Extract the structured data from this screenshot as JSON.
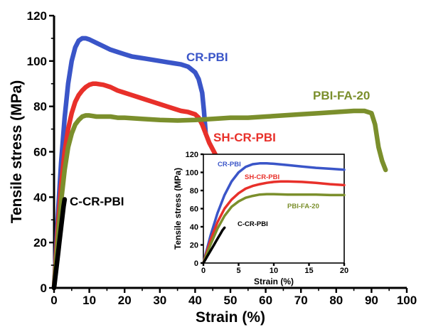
{
  "chart_data": [
    {
      "type": "line",
      "xlabel": "Strain (%)",
      "ylabel": "Tensile stress (MPa)",
      "xlim": [
        0,
        100
      ],
      "ylim": [
        0,
        120
      ],
      "xticks": [
        "0",
        "10",
        "20",
        "30",
        "40",
        "50",
        "60",
        "70",
        "80",
        "90",
        "100"
      ],
      "yticks": [
        "0",
        "20",
        "40",
        "60",
        "80",
        "100",
        "120"
      ],
      "series": [
        {
          "name": "CR-PBI",
          "color": "#3a55c8",
          "x": [
            0,
            1,
            2,
            3,
            4,
            5,
            6,
            7,
            8,
            9,
            10,
            12,
            14,
            16,
            18,
            20,
            22,
            24,
            26,
            28,
            30,
            32,
            34,
            36,
            38,
            40,
            41,
            42,
            42.5,
            43
          ],
          "y": [
            0,
            30,
            55,
            75,
            90,
            100,
            106,
            109,
            110,
            110,
            109.5,
            108,
            106.5,
            105,
            104,
            103,
            102,
            101.5,
            101,
            100.5,
            100,
            99.5,
            99,
            98.5,
            97.5,
            95,
            92,
            86,
            78,
            68
          ]
        },
        {
          "name": "SH-CR-PBI",
          "color": "#e8302a",
          "x": [
            0,
            1,
            2,
            3,
            4,
            5,
            6,
            7,
            8,
            9,
            10,
            11,
            12,
            14,
            16,
            18,
            20,
            22,
            24,
            26,
            28,
            30,
            32,
            34,
            36,
            38,
            40,
            41,
            42,
            43,
            44,
            45,
            46
          ],
          "y": [
            0,
            25,
            45,
            60,
            70,
            77,
            82,
            85,
            87,
            88.5,
            89.5,
            90,
            90,
            89.5,
            88.5,
            87,
            86,
            85,
            84,
            83,
            82,
            81,
            80,
            79,
            78,
            77.5,
            76.5,
            75,
            72,
            68,
            64,
            61,
            58
          ]
        },
        {
          "name": "PBI-FA-20",
          "color": "#7b8f2c",
          "x": [
            0,
            1,
            2,
            3,
            4,
            5,
            6,
            7,
            8,
            9,
            10,
            12,
            14,
            16,
            18,
            20,
            25,
            30,
            35,
            40,
            45,
            50,
            55,
            60,
            65,
            70,
            75,
            80,
            85,
            88,
            90,
            91,
            92,
            93,
            94
          ],
          "y": [
            0,
            20,
            38,
            52,
            62,
            68,
            72,
            74,
            75.5,
            76,
            76,
            75.5,
            75.5,
            75.5,
            75,
            75,
            74.5,
            74,
            73.8,
            74,
            74.5,
            75,
            75,
            75.5,
            76,
            76.5,
            77,
            77.5,
            78,
            78,
            77,
            72,
            62,
            56,
            52
          ]
        },
        {
          "name": "C-CR-PBI",
          "color": "#000000",
          "x": [
            0,
            0.3,
            0.6,
            0.9,
            1.2,
            1.5,
            1.8,
            2.1,
            2.4,
            2.7,
            3
          ],
          "y": [
            0,
            4,
            8,
            12,
            16,
            20,
            24,
            28,
            32,
            36,
            39
          ]
        }
      ]
    },
    {
      "type": "line",
      "xlabel": "Strain (%)",
      "ylabel": "Tensile stress (MPa)",
      "xlim": [
        0,
        20
      ],
      "ylim": [
        0,
        120
      ],
      "xticks": [
        "0",
        "5",
        "10",
        "15",
        "20"
      ],
      "yticks": [
        "0",
        "20",
        "40",
        "60",
        "80",
        "100",
        "120"
      ],
      "series": [
        {
          "name": "CR-PBI",
          "color": "#3a55c8",
          "x": [
            0,
            1,
            2,
            3,
            4,
            5,
            6,
            7,
            8,
            9,
            10,
            12,
            14,
            16,
            18,
            20
          ],
          "y": [
            0,
            30,
            55,
            75,
            90,
            100,
            106,
            109,
            110,
            110,
            109.5,
            108,
            106.5,
            105,
            104,
            103
          ]
        },
        {
          "name": "SH-CR-PBI",
          "color": "#e8302a",
          "x": [
            0,
            1,
            2,
            3,
            4,
            5,
            6,
            7,
            8,
            9,
            10,
            11,
            12,
            14,
            16,
            18,
            20
          ],
          "y": [
            0,
            25,
            45,
            60,
            70,
            77,
            82,
            85,
            87,
            88.5,
            89.5,
            90,
            90,
            89.5,
            88.5,
            87,
            86
          ]
        },
        {
          "name": "PBI-FA-20",
          "color": "#7b8f2c",
          "x": [
            0,
            1,
            2,
            3,
            4,
            5,
            6,
            7,
            8,
            9,
            10,
            12,
            14,
            16,
            18,
            20
          ],
          "y": [
            0,
            20,
            38,
            52,
            62,
            68,
            72,
            74,
            75.5,
            76,
            76,
            75.5,
            75.5,
            75.5,
            75,
            75
          ]
        },
        {
          "name": "C-CR-PBI",
          "color": "#000000",
          "x": [
            0,
            0.3,
            0.6,
            0.9,
            1.2,
            1.5,
            1.8,
            2.1,
            2.4,
            2.7,
            3
          ],
          "y": [
            0,
            4,
            8,
            12,
            16,
            20,
            24,
            28,
            32,
            36,
            39
          ]
        }
      ]
    }
  ]
}
